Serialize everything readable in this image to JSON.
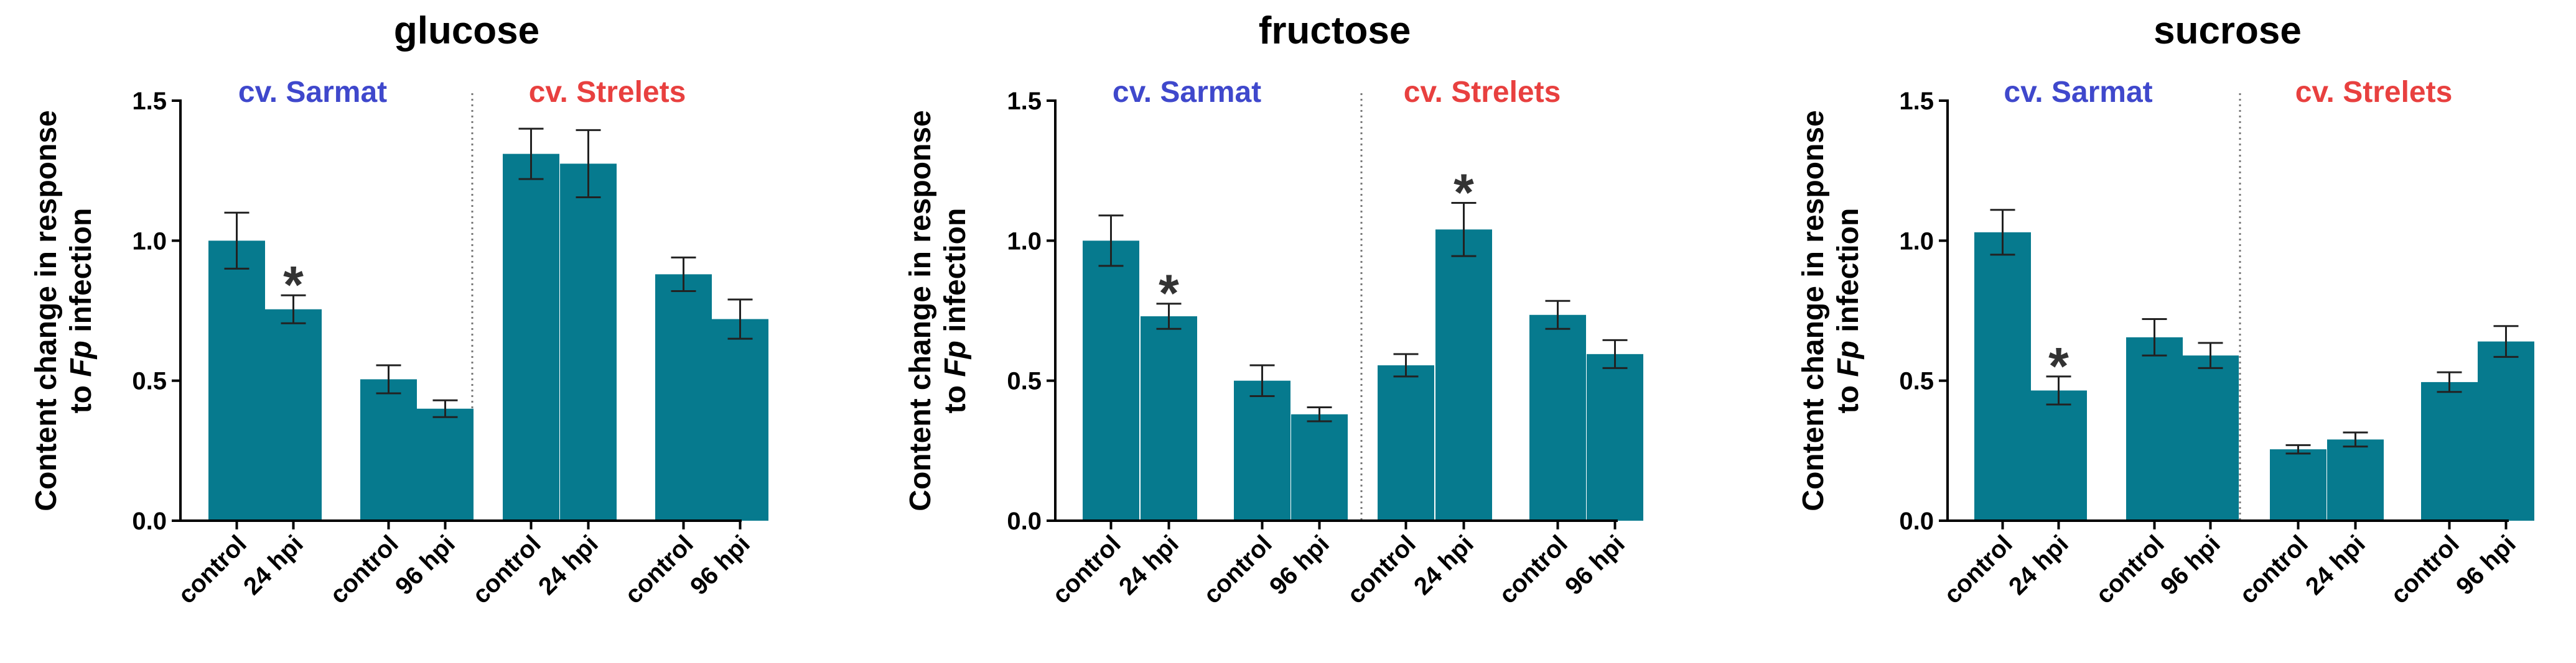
{
  "colors": {
    "bar": "#067a8e",
    "sarmat": "#3f48cc",
    "strelets": "#e8403f",
    "axis": "#000000",
    "errorbar": "#222222",
    "divider": "#777777",
    "star": "#333333"
  },
  "chart_data": [
    {
      "type": "bar",
      "title": "glucose",
      "ylabel": {
        "pre": "Content change in response",
        "mid_prefix": "to ",
        "italic": "Fp",
        "mid_suffix": " infection"
      },
      "ylim": [
        0,
        1.5
      ],
      "yticks": [
        "0.0",
        "0.5",
        "1.0",
        "1.5"
      ],
      "groups": [
        {
          "name": "cv. Sarmat",
          "color_key": "sarmat"
        },
        {
          "name": "cv. Strelets",
          "color_key": "strelets"
        }
      ],
      "categories": [
        "control",
        "24 hpi",
        "control",
        "96 hpi",
        "control",
        "24 hpi",
        "control",
        "96 hpi"
      ],
      "values": [
        1.0,
        0.755,
        0.505,
        0.4,
        1.31,
        1.275,
        0.88,
        0.72
      ],
      "errors": [
        0.1,
        0.05,
        0.05,
        0.03,
        0.09,
        0.12,
        0.06,
        0.07
      ],
      "significant": [
        false,
        true,
        false,
        false,
        false,
        false,
        false,
        false
      ],
      "star_symbol": "*"
    },
    {
      "type": "bar",
      "title": "fructose",
      "ylabel": {
        "pre": "Content change in response",
        "mid_prefix": "to ",
        "italic": "Fp",
        "mid_suffix": " infection"
      },
      "ylim": [
        0,
        1.5
      ],
      "yticks": [
        "0.0",
        "0.5",
        "1.0",
        "1.5"
      ],
      "groups": [
        {
          "name": "cv. Sarmat",
          "color_key": "sarmat"
        },
        {
          "name": "cv. Strelets",
          "color_key": "strelets"
        }
      ],
      "categories": [
        "control",
        "24 hpi",
        "control",
        "96 hpi",
        "control",
        "24 hpi",
        "control",
        "96 hpi"
      ],
      "values": [
        1.0,
        0.73,
        0.5,
        0.38,
        0.555,
        1.04,
        0.735,
        0.595
      ],
      "errors": [
        0.09,
        0.045,
        0.055,
        0.025,
        0.04,
        0.095,
        0.05,
        0.05
      ],
      "significant": [
        false,
        true,
        false,
        false,
        false,
        true,
        false,
        false
      ],
      "star_symbol": "*"
    },
    {
      "type": "bar",
      "title": "sucrose",
      "ylabel": {
        "pre": "Content change in response",
        "mid_prefix": "to ",
        "italic": "Fp",
        "mid_suffix": " infection"
      },
      "ylim": [
        0,
        1.5
      ],
      "yticks": [
        "0.0",
        "0.5",
        "1.0",
        "1.5"
      ],
      "groups": [
        {
          "name": "cv. Sarmat",
          "color_key": "sarmat"
        },
        {
          "name": "cv. Strelets",
          "color_key": "strelets"
        }
      ],
      "categories": [
        "control",
        "24 hpi",
        "control",
        "96 hpi",
        "control",
        "24 hpi",
        "control",
        "96 hpi"
      ],
      "values": [
        1.03,
        0.465,
        0.655,
        0.59,
        0.255,
        0.29,
        0.495,
        0.64
      ],
      "errors": [
        0.08,
        0.05,
        0.065,
        0.045,
        0.015,
        0.025,
        0.035,
        0.055
      ],
      "significant": [
        false,
        true,
        false,
        false,
        false,
        false,
        false,
        false
      ],
      "star_symbol": "*"
    }
  ]
}
